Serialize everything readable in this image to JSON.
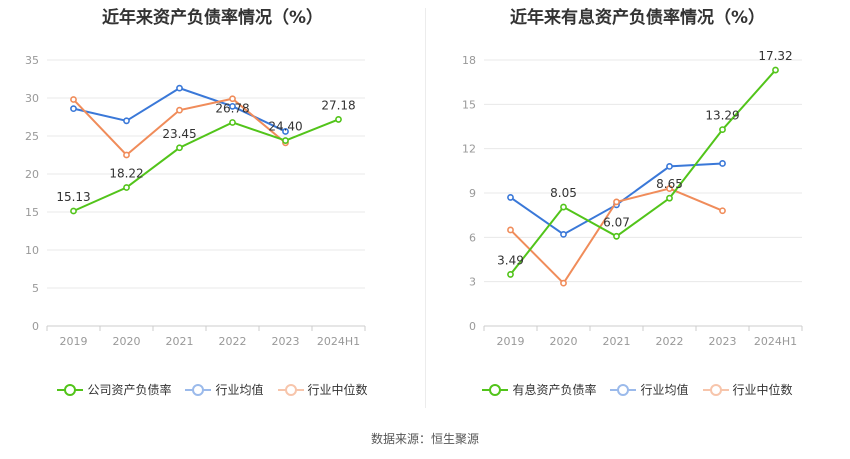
{
  "source_text": "数据来源：恒生聚源",
  "chart_data": [
    {
      "type": "line",
      "title": "近年来资产负债率情况（%）",
      "categories": [
        "2019",
        "2020",
        "2021",
        "2022",
        "2023",
        "2024H1"
      ],
      "ylim": [
        0,
        35
      ],
      "yticks": [
        0,
        5,
        10,
        15,
        20,
        25,
        30,
        35
      ],
      "grid": true,
      "legend_position": "bottom",
      "series": [
        {
          "name": "公司资产负债率",
          "color": "#52c41a",
          "values": [
            15.13,
            18.22,
            23.45,
            26.78,
            24.4,
            27.18
          ],
          "labels": [
            "15.13",
            "18.22",
            "23.45",
            "26.78",
            "24.40",
            "27.18"
          ]
        },
        {
          "name": "行业均值",
          "color": "#3a78d8",
          "values": [
            28.6,
            27.0,
            31.3,
            28.9,
            25.6,
            null
          ]
        },
        {
          "name": "行业中位数",
          "color": "#f08c5a",
          "values": [
            29.8,
            22.5,
            28.4,
            29.9,
            24.1,
            null
          ]
        }
      ]
    },
    {
      "type": "line",
      "title": "近年来有息资产负债率情况（%）",
      "categories": [
        "2019",
        "2020",
        "2021",
        "2022",
        "2023",
        "2024H1"
      ],
      "ylim": [
        0,
        18
      ],
      "yticks": [
        0,
        3,
        6,
        9,
        12,
        15,
        18
      ],
      "grid": true,
      "legend_position": "bottom",
      "series": [
        {
          "name": "有息资产负债率",
          "color": "#52c41a",
          "values": [
            3.49,
            8.05,
            6.07,
            8.65,
            13.29,
            17.32
          ],
          "labels": [
            "3.49",
            "8.05",
            "6.07",
            "8.65",
            "13.29",
            "17.32"
          ]
        },
        {
          "name": "行业均值",
          "color": "#3a78d8",
          "values": [
            8.7,
            6.2,
            8.2,
            10.8,
            11.0,
            null
          ]
        },
        {
          "name": "行业中位数",
          "color": "#f08c5a",
          "values": [
            6.5,
            2.9,
            8.4,
            9.3,
            7.8,
            null
          ]
        }
      ]
    }
  ]
}
